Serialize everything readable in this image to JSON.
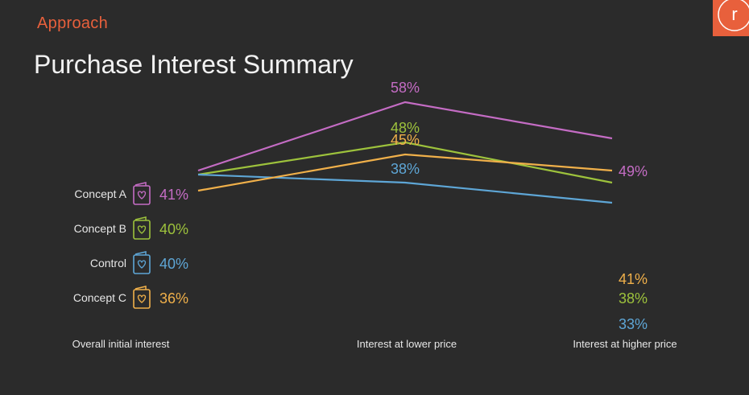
{
  "header": {
    "section": "Approach",
    "title": "Purchase Interest Summary",
    "logo_letter": "r"
  },
  "colors": {
    "background": "#2b2b2b",
    "accent": "#e8603c",
    "concept_a": "#c46cc4",
    "concept_b": "#9dc23c",
    "control": "#5ea6d6",
    "concept_c": "#f0b04a"
  },
  "chart_data": {
    "type": "line",
    "categories": [
      "Overall initial interest",
      "Interest at lower price",
      "Interest at higher price"
    ],
    "value_suffix": "%",
    "series": [
      {
        "name": "Concept A",
        "values": [
          41,
          58,
          49
        ],
        "color": "#c46cc4",
        "icon": "gift-card-heart-icon"
      },
      {
        "name": "Concept B",
        "values": [
          40,
          48,
          38
        ],
        "color": "#9dc23c",
        "icon": "gift-card-heart-icon"
      },
      {
        "name": "Control",
        "values": [
          40,
          38,
          33
        ],
        "color": "#5ea6d6",
        "icon": "gift-card-heart-icon"
      },
      {
        "name": "Concept C",
        "values": [
          36,
          45,
          41
        ],
        "color": "#f0b04a",
        "icon": "gift-card-heart-icon"
      }
    ]
  }
}
